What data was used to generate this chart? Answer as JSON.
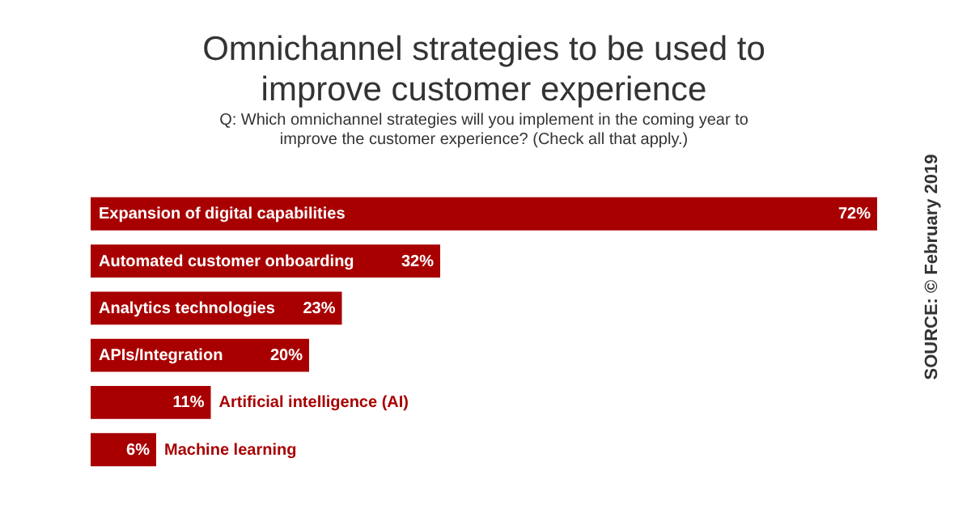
{
  "chart_data": {
    "type": "bar",
    "orientation": "horizontal",
    "title": "Omnichannel strategies to be used to improve customer experience",
    "subtitle": "Q: Which omnichannel strategies will you implement in the coming year to improve the customer experience? (Check all that apply.)",
    "categories": [
      "Expansion of digital capabilities",
      "Automated customer onboarding",
      "Analytics technologies",
      "APIs/Integration",
      "Artificial intelligence (AI)",
      "Machine learning"
    ],
    "values": [
      72,
      32,
      23,
      20,
      11,
      6
    ],
    "value_labels": [
      "72%",
      "32%",
      "23%",
      "20%",
      "11%",
      "6%"
    ],
    "color": "#a80000",
    "xlim": [
      0,
      72
    ],
    "annotations": [
      "SOURCE: © February 2019"
    ]
  }
}
